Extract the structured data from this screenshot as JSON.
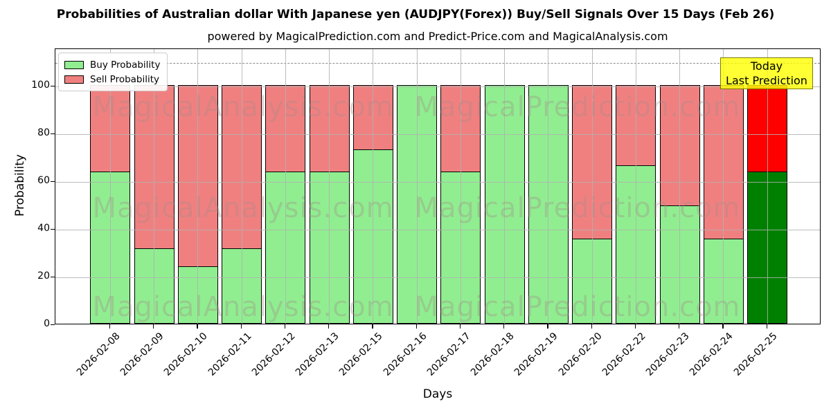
{
  "title": "Probabilities of Australian dollar With Japanese yen (AUDJPY(Forex)) Buy/Sell Signals Over 15 Days (Feb 26)",
  "subtitle": "powered by MagicalPrediction.com and Predict-Price.com and MagicalAnalysis.com",
  "axes": {
    "ylabel": "Probability",
    "xlabel": "Days",
    "yticks": [
      0,
      20,
      40,
      60,
      80,
      100
    ],
    "ylim": [
      0,
      115.7
    ],
    "dashed_line_y": 110,
    "grid": "on"
  },
  "legend": {
    "position": "upper-left",
    "items": [
      {
        "label": "Buy Probability",
        "color": "#90EE90"
      },
      {
        "label": "Sell Probability",
        "color": "#F08080"
      }
    ]
  },
  "annotation": {
    "lines": [
      "Today",
      "Last Prediction"
    ],
    "bg_color": "#FFFF00"
  },
  "watermarks": {
    "left": "MagicalAnalysis.com",
    "right": "MagicalPrediction.com"
  },
  "chart_data": {
    "type": "bar",
    "stacked": true,
    "categories": [
      "2026-02-08",
      "2026-02-09",
      "2026-02-10",
      "2026-02-11",
      "2026-02-12",
      "2026-02-13",
      "2026-02-15",
      "2026-02-16",
      "2026-02-17",
      "2026-02-18",
      "2026-02-19",
      "2026-02-20",
      "2026-02-22",
      "2026-02-23",
      "2026-02-24",
      "2026-02-25"
    ],
    "series": [
      {
        "name": "Buy Probability",
        "values": [
          63.7,
          31.6,
          24.0,
          31.6,
          63.7,
          63.7,
          73.0,
          100.0,
          63.7,
          100.0,
          100.0,
          35.8,
          66.5,
          49.6,
          35.8,
          63.8
        ]
      },
      {
        "name": "Sell Probability",
        "values": [
          36.3,
          68.4,
          76.0,
          68.4,
          36.3,
          36.3,
          27.0,
          0.0,
          36.3,
          0.0,
          0.0,
          64.2,
          33.5,
          50.4,
          64.2,
          36.2
        ]
      }
    ],
    "colors": {
      "buy": "#90EE90",
      "sell": "#F08080",
      "buy_today": "#008000",
      "sell_today": "#FF0000"
    },
    "today_bar_index": 15,
    "title": "Probabilities of Australian dollar With Japanese yen (AUDJPY(Forex)) Buy/Sell Signals Over 15 Days (Feb 26)",
    "xlabel": "Days",
    "ylabel": "Probability"
  }
}
